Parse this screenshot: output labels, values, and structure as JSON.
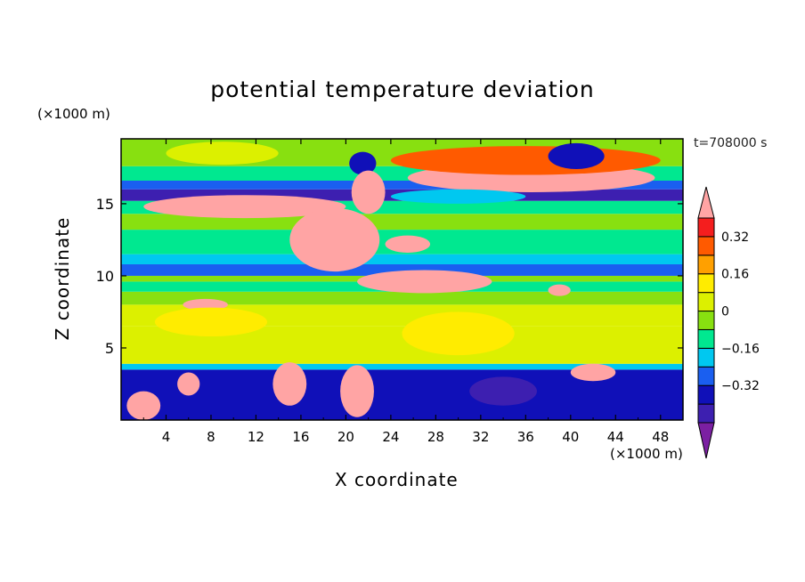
{
  "chart_data": {
    "type": "heatmap",
    "title": "potential temperature deviation",
    "xlabel": "X coordinate",
    "ylabel": "Z coordinate",
    "x_units": "(×1000 m)",
    "y_units": "(×1000 m)",
    "time_label": "t=708000 s",
    "xlim": [
      0,
      50
    ],
    "ylim": [
      0,
      19.5
    ],
    "x_ticks": [
      "4",
      "8",
      "12",
      "16",
      "20",
      "24",
      "28",
      "32",
      "36",
      "40",
      "44",
      "48"
    ],
    "y_ticks": [
      "5",
      "10",
      "15"
    ],
    "colorbar": {
      "levels": [
        -0.48,
        -0.4,
        -0.32,
        -0.24,
        -0.16,
        -0.08,
        0,
        0.08,
        0.16,
        0.24,
        0.32,
        0.4
      ],
      "labels": [
        "-0.32",
        "-0.16",
        "0",
        "0.16",
        "0.32"
      ],
      "label_values": [
        -0.32,
        -0.16,
        0,
        0.16,
        0.32
      ],
      "colors": [
        "#7b1fa2",
        "#3d1fb0",
        "#1010b8",
        "#1a5ff0",
        "#00c8f0",
        "#00e890",
        "#88e010",
        "#dcf000",
        "#ffec00",
        "#ffa000",
        "#ff5a00",
        "#f41e1e",
        "#ffa4a4"
      ],
      "extend": "both"
    },
    "bands": [
      {
        "z0": 0,
        "z1": 3.5,
        "value": -0.35
      },
      {
        "z0": 3.5,
        "z1": 3.9,
        "value": -0.2
      },
      {
        "z0": 3.9,
        "z1": 6.5,
        "value": 0.03
      },
      {
        "z0": 6.5,
        "z1": 8.0,
        "value": 0.05
      },
      {
        "z0": 8.0,
        "z1": 8.9,
        "value": -0.08
      },
      {
        "z0": 8.9,
        "z1": 9.6,
        "value": -0.12
      },
      {
        "z0": 9.6,
        "z1": 10.0,
        "value": -0.02
      },
      {
        "z0": 10.0,
        "z1": 10.8,
        "value": -0.3
      },
      {
        "z0": 10.8,
        "z1": 11.5,
        "value": -0.2
      },
      {
        "z0": 11.5,
        "z1": 13.2,
        "value": -0.1
      },
      {
        "z0": 13.2,
        "z1": 14.3,
        "value": -0.05
      },
      {
        "z0": 14.3,
        "z1": 15.2,
        "value": -0.1
      },
      {
        "z0": 15.2,
        "z1": 16.0,
        "value": -0.42
      },
      {
        "z0": 16.0,
        "z1": 16.6,
        "value": -0.3
      },
      {
        "z0": 16.6,
        "z1": 17.6,
        "value": -0.12
      },
      {
        "z0": 17.6,
        "z1": 19.5,
        "value": -0.03
      }
    ],
    "blobs": [
      {
        "x": 11,
        "z": 14.8,
        "rx": 9,
        "rz": 0.8,
        "value": 0.45
      },
      {
        "x": 19,
        "z": 12.5,
        "rx": 4,
        "rz": 2.2,
        "value": 0.45
      },
      {
        "x": 27,
        "z": 9.6,
        "rx": 6,
        "rz": 0.8,
        "value": 0.45
      },
      {
        "x": 36.5,
        "z": 16.8,
        "rx": 11,
        "rz": 1.0,
        "value": 0.45
      },
      {
        "x": 36,
        "z": 18.0,
        "rx": 12,
        "rz": 1.0,
        "value": 0.3
      },
      {
        "x": 40.5,
        "z": 18.3,
        "rx": 2.5,
        "rz": 0.9,
        "value": -0.4
      },
      {
        "x": 21.5,
        "z": 17.8,
        "rx": 1.2,
        "rz": 0.8,
        "value": -0.4
      },
      {
        "x": 22,
        "z": 15.8,
        "rx": 1.5,
        "rz": 1.5,
        "value": 0.45
      },
      {
        "x": 25.5,
        "z": 12.2,
        "rx": 2,
        "rz": 0.6,
        "value": 0.45
      },
      {
        "x": 7.5,
        "z": 8.0,
        "rx": 2,
        "rz": 0.4,
        "value": 0.45
      },
      {
        "x": 39,
        "z": 9.0,
        "rx": 1,
        "rz": 0.4,
        "value": 0.45
      },
      {
        "x": 2,
        "z": 1.0,
        "rx": 1.5,
        "rz": 1.0,
        "value": 0.45
      },
      {
        "x": 15,
        "z": 2.5,
        "rx": 1.5,
        "rz": 1.5,
        "value": 0.45
      },
      {
        "x": 21,
        "z": 2.0,
        "rx": 1.5,
        "rz": 1.8,
        "value": 0.45
      },
      {
        "x": 34,
        "z": 2.0,
        "rx": 3,
        "rz": 1.0,
        "value": -0.48
      },
      {
        "x": 42,
        "z": 3.3,
        "rx": 2,
        "rz": 0.6,
        "value": 0.45
      },
      {
        "x": 6,
        "z": 2.5,
        "rx": 1,
        "rz": 0.8,
        "value": 0.45
      },
      {
        "x": 8,
        "z": 6.8,
        "rx": 5,
        "rz": 1.0,
        "value": 0.12
      },
      {
        "x": 30,
        "z": 6.0,
        "rx": 5,
        "rz": 1.5,
        "value": 0.12
      },
      {
        "x": 9,
        "z": 18.5,
        "rx": 5,
        "rz": 0.8,
        "value": 0.05
      },
      {
        "x": 30,
        "z": 15.5,
        "rx": 6,
        "rz": 0.5,
        "value": -0.2
      }
    ]
  }
}
